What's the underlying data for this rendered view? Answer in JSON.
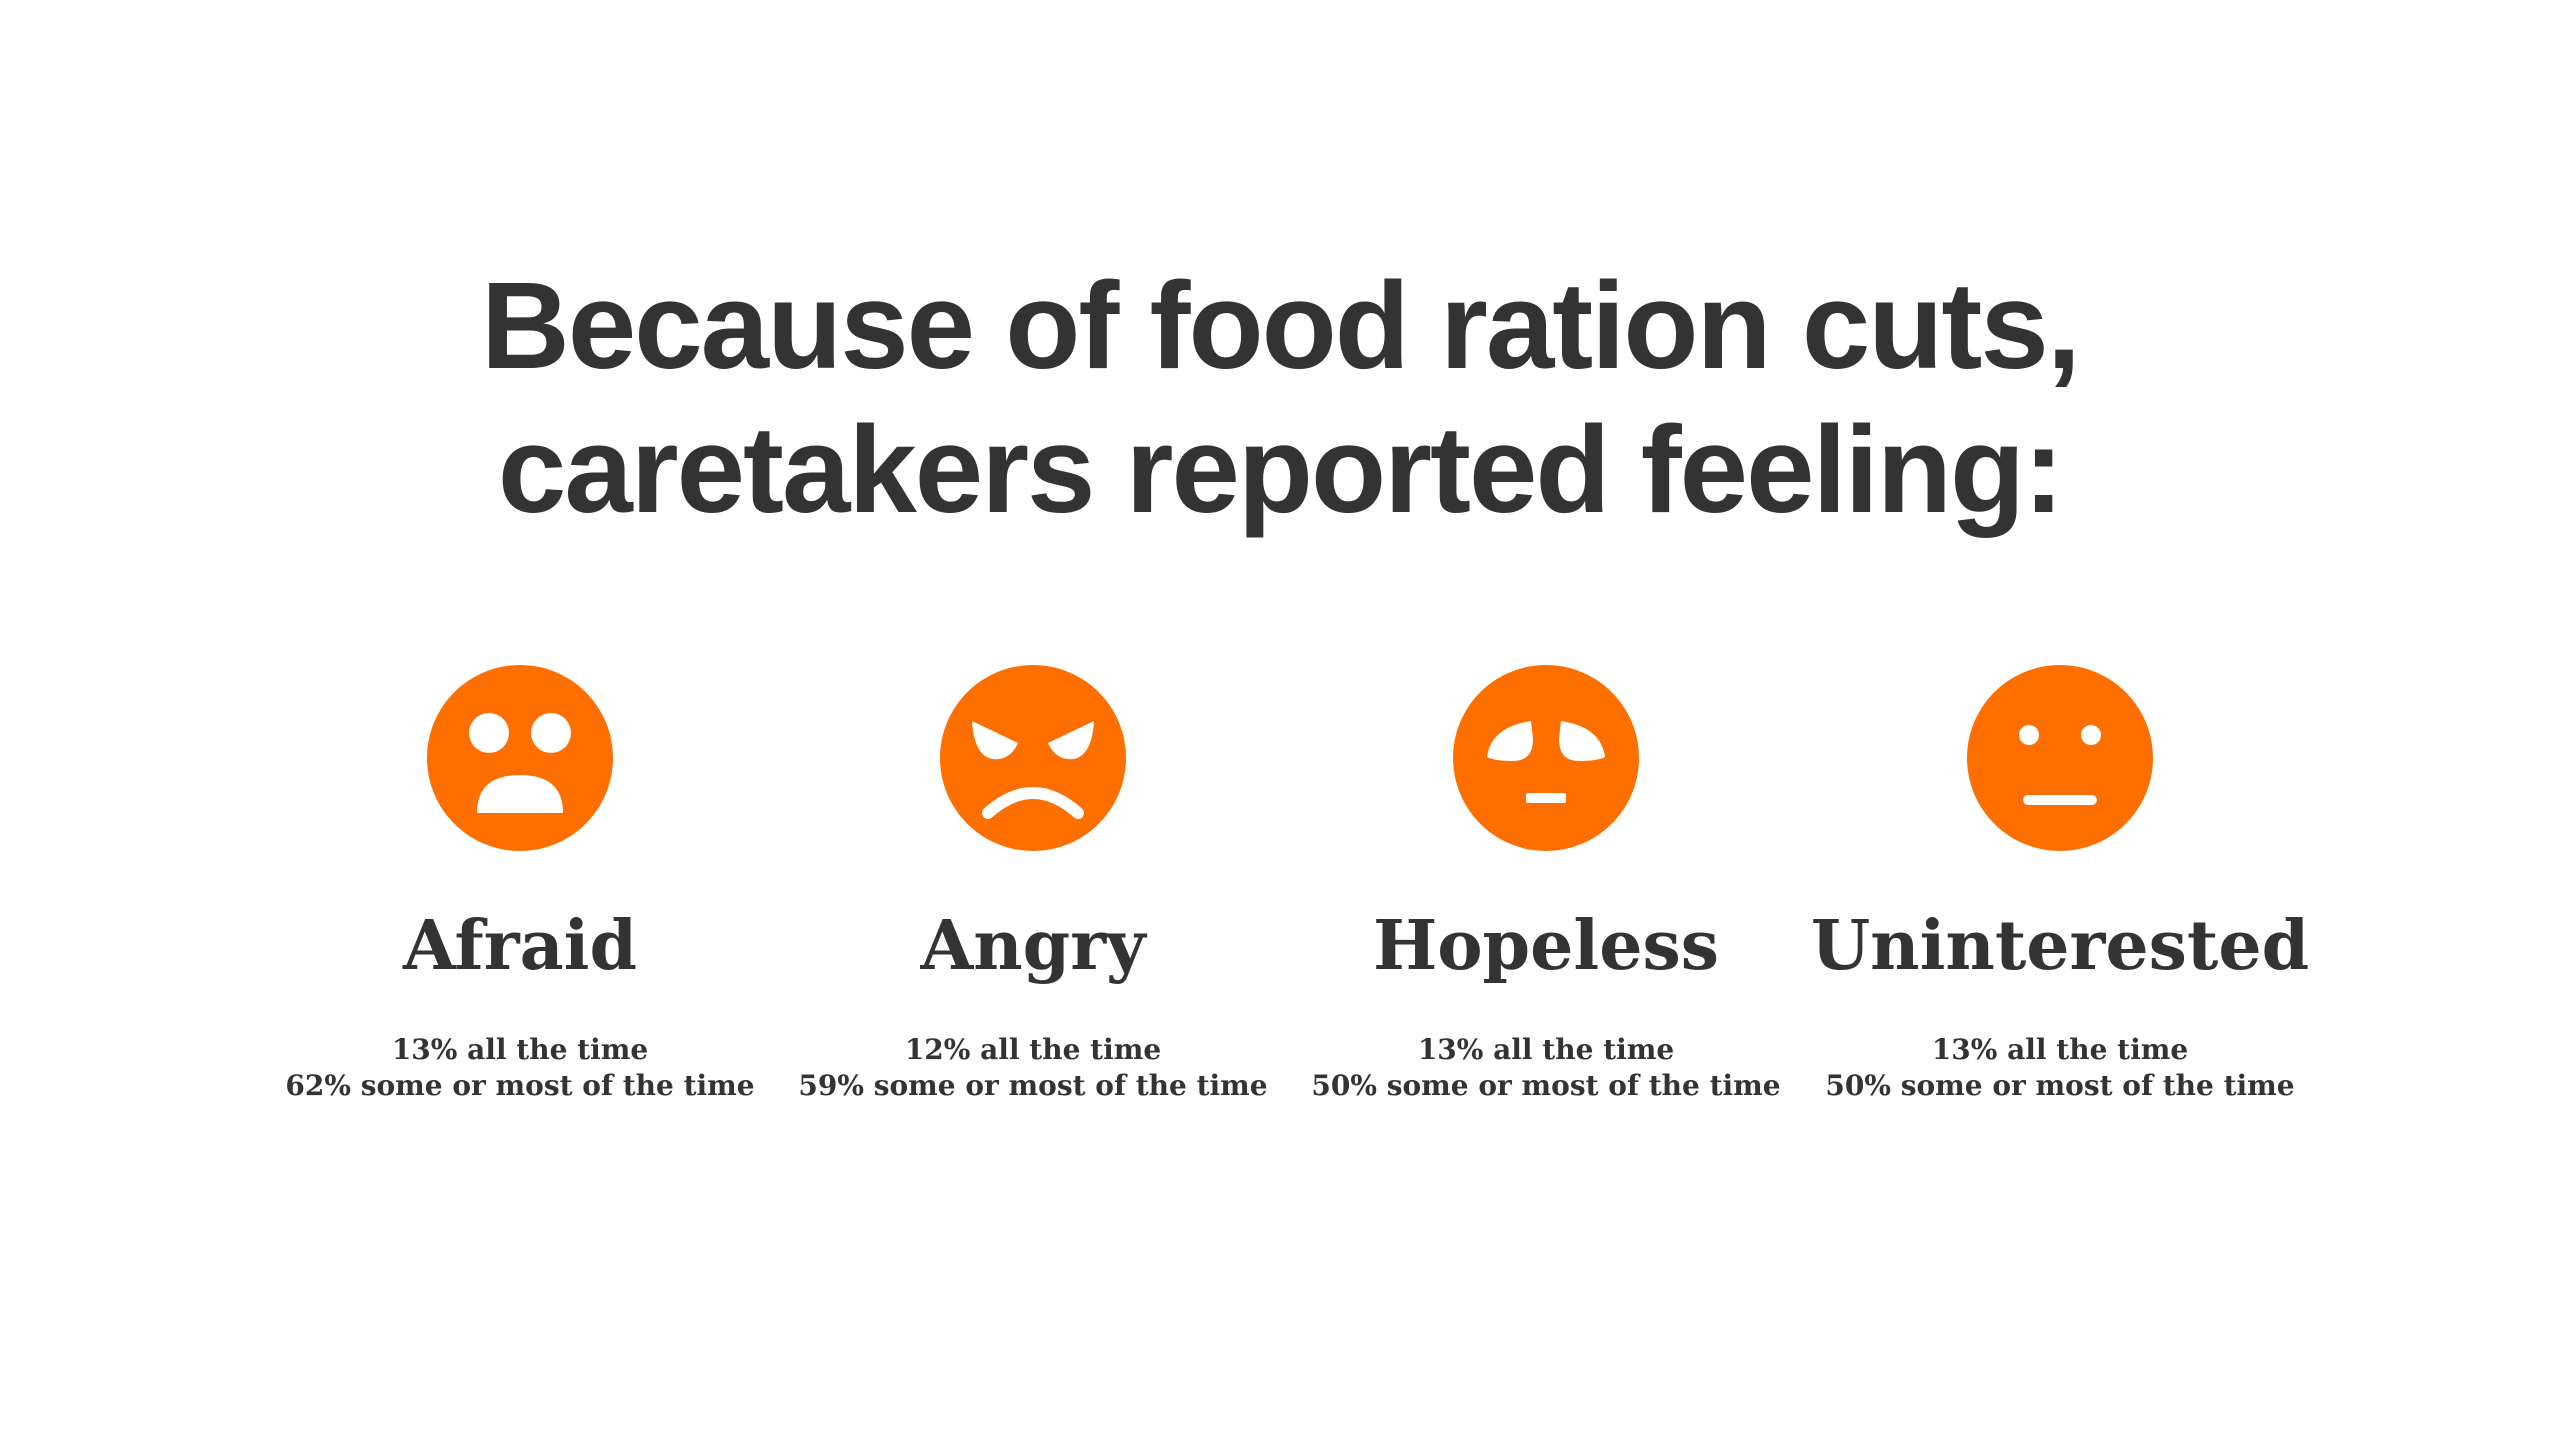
{
  "title": {
    "line1": "Because of food ration cuts,",
    "line2": "caretakers reported feeling:"
  },
  "accent_color": "#ff6f00",
  "feelings": [
    {
      "icon": "afraid-face-icon",
      "label": "Afraid",
      "all_the_time": "13% all the time",
      "some_or_most": "62% some or most of the time"
    },
    {
      "icon": "angry-face-icon",
      "label": "Angry",
      "all_the_time": "12% all the time",
      "some_or_most": "59% some or most of the time"
    },
    {
      "icon": "hopeless-face-icon",
      "label": "Hopeless",
      "all_the_time": "13% all the time",
      "some_or_most": "50% some or most of the time"
    },
    {
      "icon": "uninterested-face-icon",
      "label": "Uninterested",
      "all_the_time": "13% all the time",
      "some_or_most": "50% some or most of the time"
    }
  ]
}
